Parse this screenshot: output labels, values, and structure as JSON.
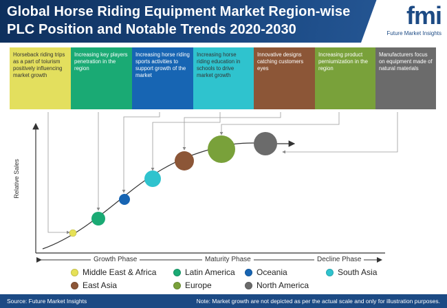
{
  "header": {
    "title_line1": "Global Horse Riding Equipment Market Region-wise",
    "title_line2": "PLC Position and Notable Trends 2020-2030",
    "logo_letters": "fmi",
    "logo_name": "Future Market Insights"
  },
  "trends": [
    {
      "text": "Horseback riding trips as a part of toiurism positively influencing market growth",
      "color": "#e3df5e",
      "text_color": "#333333"
    },
    {
      "text": "Increasing key players penetration in the region",
      "color": "#1aaa74",
      "text_color": "#ffffff"
    },
    {
      "text": "Increasing horse riding sports activities to support growth of the market",
      "color": "#1765b3",
      "text_color": "#ffffff"
    },
    {
      "text": "Increasing horse riding education in schools to drive market growth",
      "color": "#2fc3ce",
      "text_color": "#333333"
    },
    {
      "text": "Innovative designs catching customers eyes",
      "color": "#8c5637",
      "text_color": "#ffffff"
    },
    {
      "text": "Increasing product perniumization in the region",
      "color": "#79a13a",
      "text_color": "#ffffff"
    },
    {
      "text": "Manufacturers focus on equipment made of natural materials",
      "color": "#6b6b6b",
      "text_color": "#ffffff"
    }
  ],
  "axes": {
    "ylabel": "Relative Sales",
    "phases": [
      "Growth Phase",
      "Maturity Phase",
      "Decline Phase"
    ]
  },
  "regions": [
    {
      "name": "Middle East & Africa",
      "color": "#e6e157"
    },
    {
      "name": "Latin America",
      "color": "#1aaa74"
    },
    {
      "name": "Oceania",
      "color": "#1765b3"
    },
    {
      "name": "South Asia",
      "color": "#2fc3ce"
    },
    {
      "name": "East Asia",
      "color": "#8c5637"
    },
    {
      "name": "Europe",
      "color": "#79a13a"
    },
    {
      "name": "North America",
      "color": "#6b6b6b"
    }
  ],
  "footer": {
    "source": "Source: Future Market Insights",
    "note": "Note: Market growth are not depicted as per the actual scale and only for illustration purposes."
  }
}
